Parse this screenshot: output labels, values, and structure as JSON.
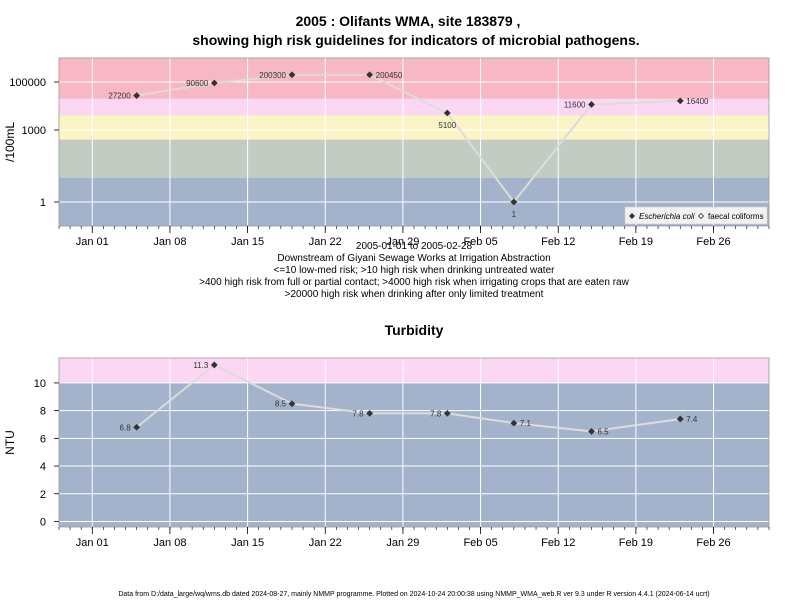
{
  "page": {
    "footer": "Data from D:/data_large/wq/wms.db dated 2024-08-27, mainly NMMP programme. Plotted on 2024-10-24 20:00:38 using NMMP_WMA_web.R ver 9.3 under R version 4.4.1 (2024-06-14 ucrt)"
  },
  "chart_data": [
    {
      "type": "line",
      "title_line1": "2005 : Olifants WMA, site 183879 ,",
      "title_line2": "showing high risk guidelines for indicators of microbial pathogens.",
      "ylabel": "/100mL",
      "yscale": "log",
      "ylim": [
        0.1,
        1000000
      ],
      "xlim": [
        "2004-12-29",
        "2005-03-03"
      ],
      "yticks": [
        {
          "v": 1,
          "label": "1"
        },
        {
          "v": 1000,
          "label": "1000"
        },
        {
          "v": 100000,
          "label": "100000"
        }
      ],
      "xticks": [
        {
          "date": "2005-01-01",
          "label": "Jan 01"
        },
        {
          "date": "2005-01-08",
          "label": "Jan 08"
        },
        {
          "date": "2005-01-15",
          "label": "Jan 15"
        },
        {
          "date": "2005-01-22",
          "label": "Jan 22"
        },
        {
          "date": "2005-01-29",
          "label": "Jan 29"
        },
        {
          "date": "2005-02-05",
          "label": "Feb 05"
        },
        {
          "date": "2005-02-12",
          "label": "Feb 12"
        },
        {
          "date": "2005-02-19",
          "label": "Feb 19"
        },
        {
          "date": "2005-02-26",
          "label": "Feb 26"
        }
      ],
      "bands": [
        {
          "from": 0.1,
          "to": 10,
          "color": "#a3b3cc"
        },
        {
          "from": 10,
          "to": 400,
          "color": "#c2ccc2"
        },
        {
          "from": 400,
          "to": 4000,
          "color": "#fbf5c6"
        },
        {
          "from": 4000,
          "to": 20000,
          "color": "#fbd7f3"
        },
        {
          "from": 20000,
          "to": 1000000,
          "color": "#f7b7c4"
        }
      ],
      "notes": [
        "2005-01-01 to 2005-02-28",
        "Downstream of Giyani Sewage Works at Irrigation Abstraction",
        "<=10 low-med risk; >10 high risk when drinking untreated water",
        ">400 high risk from full or partial contact; >4000 high risk when irrigating crops that are eaten raw",
        ">20000 high risk when drinking after only limited treatment"
      ],
      "legend": {
        "placement": "bottom-right",
        "entries": [
          {
            "label": "Escherichia coli",
            "italic": true
          },
          {
            "label": "faecal coliforms",
            "italic": false
          }
        ]
      },
      "series": [
        {
          "name": "Escherichia coli",
          "points": [
            {
              "date": "2005-01-05",
              "value": 27200,
              "label": "27200",
              "pos": "left"
            },
            {
              "date": "2005-01-12",
              "value": 90600,
              "label": "90600",
              "pos": "left"
            },
            {
              "date": "2005-01-19",
              "value": 200300,
              "label": "200300",
              "pos": "left"
            },
            {
              "date": "2005-01-26",
              "value": 200450,
              "label": "200450",
              "pos": "right"
            },
            {
              "date": "2005-02-02",
              "value": 5100,
              "label": "5100",
              "pos": "below"
            },
            {
              "date": "2005-02-08",
              "value": 1,
              "label": "1",
              "pos": "below"
            },
            {
              "date": "2005-02-15",
              "value": 11600,
              "label": "11600",
              "pos": "left"
            },
            {
              "date": "2005-02-23",
              "value": 16400,
              "label": "16400",
              "pos": "right"
            }
          ]
        }
      ]
    },
    {
      "type": "line",
      "title": "Turbidity",
      "ylabel": "NTU",
      "yscale": "linear",
      "ylim": [
        -0.4,
        11.8
      ],
      "xlim": [
        "2004-12-29",
        "2005-03-03"
      ],
      "yticks": [
        {
          "v": 0,
          "label": "0"
        },
        {
          "v": 2,
          "label": "2"
        },
        {
          "v": 4,
          "label": "4"
        },
        {
          "v": 6,
          "label": "6"
        },
        {
          "v": 8,
          "label": "8"
        },
        {
          "v": 10,
          "label": "10"
        }
      ],
      "xticks": [
        {
          "date": "2005-01-01",
          "label": "Jan 01"
        },
        {
          "date": "2005-01-08",
          "label": "Jan 08"
        },
        {
          "date": "2005-01-15",
          "label": "Jan 15"
        },
        {
          "date": "2005-01-22",
          "label": "Jan 22"
        },
        {
          "date": "2005-01-29",
          "label": "Jan 29"
        },
        {
          "date": "2005-02-05",
          "label": "Feb 05"
        },
        {
          "date": "2005-02-12",
          "label": "Feb 12"
        },
        {
          "date": "2005-02-19",
          "label": "Feb 19"
        },
        {
          "date": "2005-02-26",
          "label": "Feb 26"
        }
      ],
      "bands": [
        {
          "from": -0.4,
          "to": 10,
          "color": "#a3b3cc"
        },
        {
          "from": 10,
          "to": 11.8,
          "color": "#fbd7f3"
        }
      ],
      "series": [
        {
          "name": "",
          "points": [
            {
              "date": "2005-01-05",
              "value": 6.8,
              "label": "6.8",
              "pos": "left"
            },
            {
              "date": "2005-01-12",
              "value": 11.3,
              "label": "11.3",
              "pos": "left"
            },
            {
              "date": "2005-01-19",
              "value": 8.5,
              "label": "8.5",
              "pos": "left"
            },
            {
              "date": "2005-01-26",
              "value": 7.8,
              "label": "7.8",
              "pos": "left"
            },
            {
              "date": "2005-02-02",
              "value": 7.8,
              "label": "7.8",
              "pos": "left"
            },
            {
              "date": "2005-02-08",
              "value": 7.1,
              "label": "7.1",
              "pos": "right"
            },
            {
              "date": "2005-02-15",
              "value": 6.5,
              "label": "6.5",
              "pos": "right"
            },
            {
              "date": "2005-02-23",
              "value": 7.4,
              "label": "7.4",
              "pos": "right"
            }
          ]
        }
      ]
    }
  ]
}
